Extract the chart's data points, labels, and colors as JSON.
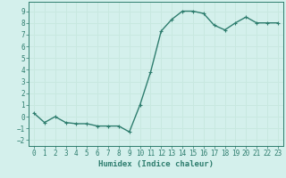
{
  "x": [
    0,
    1,
    2,
    3,
    4,
    5,
    6,
    7,
    8,
    9,
    10,
    11,
    12,
    13,
    14,
    15,
    16,
    17,
    18,
    19,
    20,
    21,
    22,
    23
  ],
  "y": [
    0.3,
    -0.5,
    0.0,
    -0.5,
    -0.6,
    -0.6,
    -0.8,
    -0.8,
    -0.8,
    -1.3,
    1.0,
    3.8,
    7.3,
    8.3,
    9.0,
    9.0,
    8.8,
    7.8,
    7.4,
    8.0,
    8.5,
    8.0,
    8.0,
    8.0
  ],
  "line_color": "#2e7d6e",
  "marker": "+",
  "markersize": 3,
  "linewidth": 1.0,
  "xlabel": "Humidex (Indice chaleur)",
  "xlim": [
    -0.5,
    23.5
  ],
  "ylim": [
    -2.5,
    9.8
  ],
  "yticks": [
    -2,
    -1,
    0,
    1,
    2,
    3,
    4,
    5,
    6,
    7,
    8,
    9
  ],
  "xticks": [
    0,
    1,
    2,
    3,
    4,
    5,
    6,
    7,
    8,
    9,
    10,
    11,
    12,
    13,
    14,
    15,
    16,
    17,
    18,
    19,
    20,
    21,
    22,
    23
  ],
  "bg_color": "#d4f0ec",
  "grid_color": "#c8e8e0",
  "label_color": "#2e7d6e",
  "xlabel_fontsize": 6.5,
  "tick_fontsize": 5.5
}
